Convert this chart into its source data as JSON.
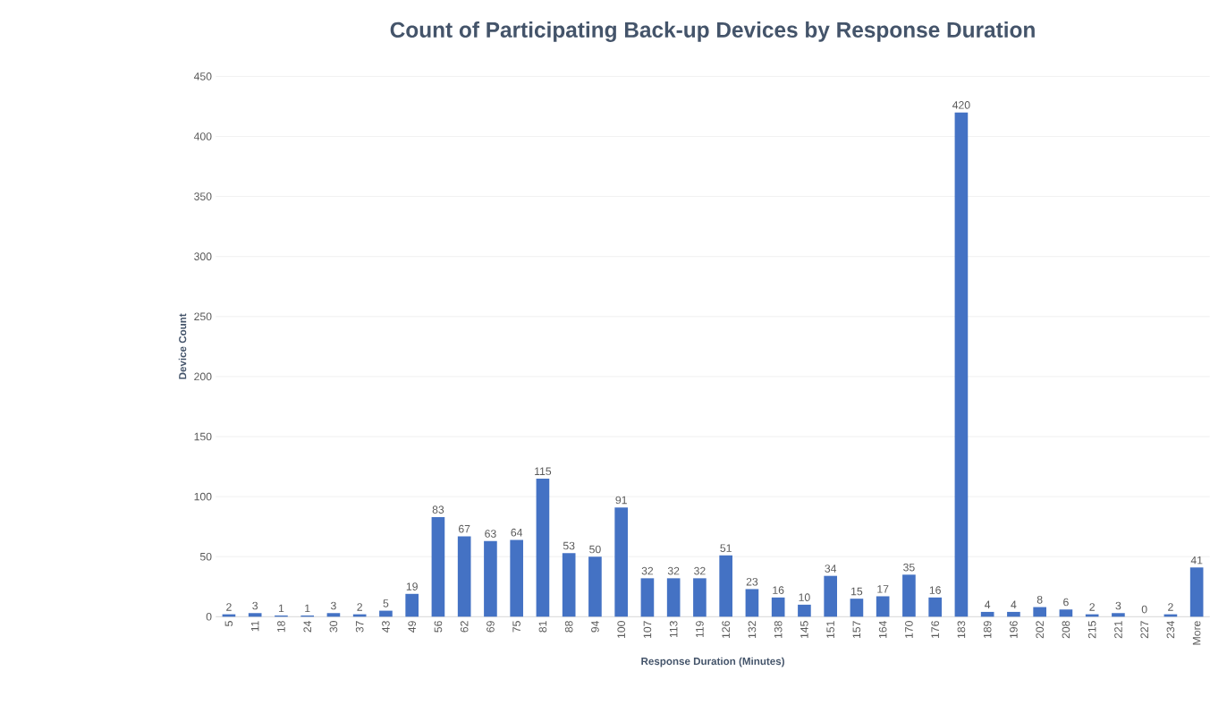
{
  "chart_data": {
    "type": "bar",
    "title": "Count of Participating Back-up Devices by Response Duration",
    "xlabel": "Response Duration (Minutes)",
    "ylabel": "Device  Count",
    "categories": [
      "5",
      "11",
      "18",
      "24",
      "30",
      "37",
      "43",
      "49",
      "56",
      "62",
      "69",
      "75",
      "81",
      "88",
      "94",
      "100",
      "107",
      "113",
      "119",
      "126",
      "132",
      "138",
      "145",
      "151",
      "157",
      "164",
      "170",
      "176",
      "183",
      "189",
      "196",
      "202",
      "208",
      "215",
      "221",
      "227",
      "234",
      "More"
    ],
    "values": [
      2,
      3,
      1,
      1,
      3,
      2,
      5,
      19,
      83,
      67,
      63,
      64,
      115,
      53,
      50,
      91,
      32,
      32,
      32,
      51,
      23,
      16,
      10,
      34,
      15,
      17,
      35,
      16,
      420,
      4,
      4,
      8,
      6,
      2,
      3,
      0,
      2,
      41
    ],
    "color": "#4472c4",
    "ylim": [
      0,
      450
    ],
    "yticks": [
      0,
      50,
      100,
      150,
      200,
      250,
      300,
      350,
      400,
      450
    ],
    "grid": "y",
    "data_labels": true
  }
}
